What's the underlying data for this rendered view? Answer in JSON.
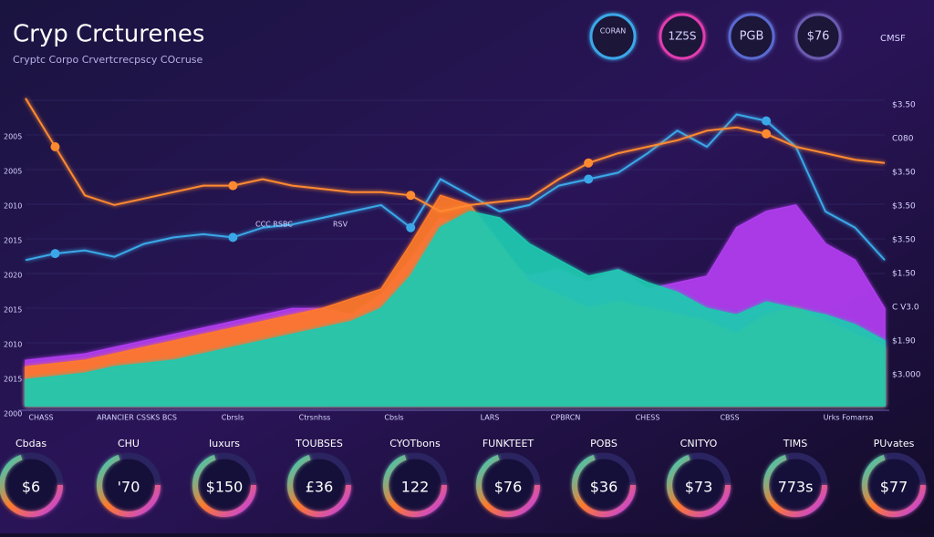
{
  "header": {
    "title": "Cryp Crcturenes",
    "subtitle": "Cryptc Corpo Crvertcrecpscy COcruse"
  },
  "badges": [
    "CORAN",
    "1Z5S",
    "PGB",
    "$76",
    "CMSF"
  ],
  "chart": {
    "left_labels": [
      "2005",
      "2005",
      "2010",
      "2015",
      "2020",
      "2015",
      "2010",
      "2015",
      "2000"
    ],
    "right_labels": [
      "$3.50",
      "C080",
      "$3.50",
      "$3.50",
      "$3.50",
      "$1.50",
      "C V3.0",
      "$1.90",
      "$3.000"
    ],
    "x_labels": [
      "CHASS",
      "ARANCIER CSSKS BCS",
      "Cbrsls",
      "Ctrsnhss",
      "Cbsls",
      "LARS",
      "CPBRCN",
      "CHESS",
      "CBSS",
      "Urks Fomarsa"
    ],
    "notes": [
      "CCC RSBC",
      "RSV"
    ],
    "series": [
      {
        "name": "purple",
        "color": "#b23cf0",
        "values": [
          14,
          15,
          16,
          18,
          20,
          22,
          24,
          26,
          28,
          30,
          30,
          28,
          34,
          45,
          58,
          55,
          45,
          40,
          42,
          38,
          42,
          36,
          38,
          40,
          55,
          60,
          62,
          50,
          45,
          30
        ]
      },
      {
        "name": "orange",
        "color": "#ff7a2a",
        "values": [
          12,
          13,
          14,
          16,
          18,
          20,
          22,
          24,
          26,
          28,
          30,
          33,
          36,
          50,
          65,
          62,
          50,
          38,
          34,
          30,
          32,
          30,
          28,
          26,
          22,
          28,
          30,
          26,
          22,
          18
        ]
      },
      {
        "name": "teal",
        "color": "#1fc9b0",
        "values": [
          8,
          9,
          10,
          12,
          13,
          14,
          16,
          18,
          20,
          22,
          24,
          26,
          30,
          40,
          55,
          60,
          58,
          50,
          45,
          40,
          42,
          38,
          35,
          30,
          28,
          32,
          30,
          28,
          25,
          20
        ]
      },
      {
        "name": "blue-line",
        "color": "#3aa8e8",
        "values": [
          45,
          47,
          48,
          46,
          50,
          52,
          53,
          52,
          55,
          56,
          58,
          60,
          62,
          55,
          70,
          65,
          60,
          62,
          68,
          70,
          72,
          78,
          85,
          80,
          90,
          88,
          80,
          60,
          55,
          45
        ]
      },
      {
        "name": "orange-line",
        "color": "#ff8a30",
        "values": [
          95,
          80,
          65,
          62,
          64,
          66,
          68,
          68,
          70,
          68,
          67,
          66,
          66,
          65,
          60,
          62,
          63,
          64,
          70,
          75,
          78,
          80,
          82,
          85,
          86,
          84,
          80,
          78,
          76,
          75
        ]
      }
    ]
  },
  "gauges": [
    {
      "label": "Cbdas",
      "value": "$6"
    },
    {
      "label": "CHU",
      "value": "'70"
    },
    {
      "label": "Iuxurs",
      "value": "$150"
    },
    {
      "label": "TOUBSES",
      "value": "£36"
    },
    {
      "label": "CYOTbons",
      "value": "122"
    },
    {
      "label": "FUNKTEET",
      "value": "$76"
    },
    {
      "label": "POBS",
      "value": "$36"
    },
    {
      "label": "CNITYO",
      "value": "$73"
    },
    {
      "label": "TIMS",
      "value": "773s"
    },
    {
      "label": "PUvates",
      "value": "$77"
    }
  ]
}
